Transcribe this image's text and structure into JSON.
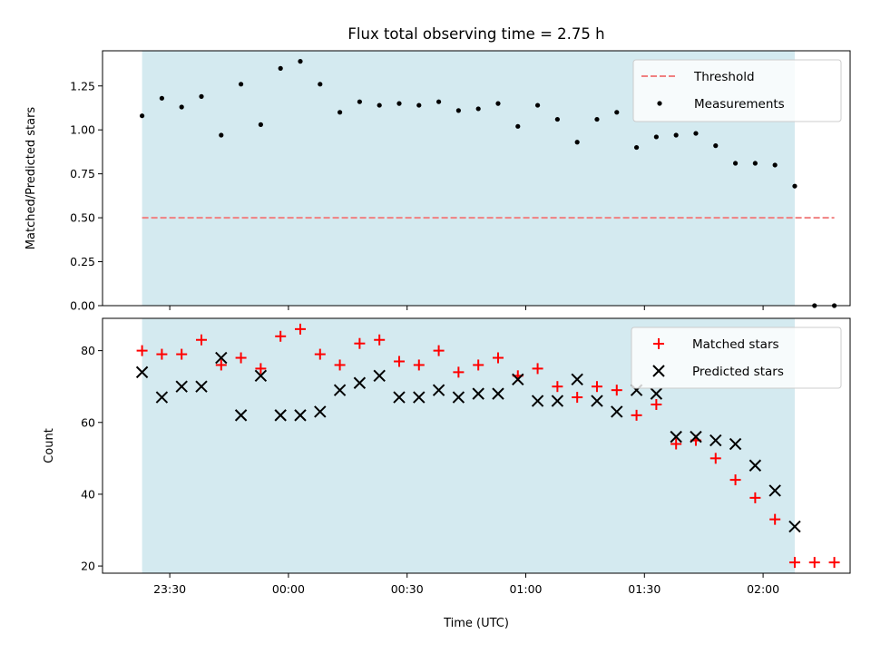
{
  "title": "Flux total observing time = 2.75 h",
  "colors": {
    "shade": "#d4eaf0",
    "threshold": "#f08080",
    "measurement": "#000000",
    "matched": "#ff0000",
    "predicted": "#000000"
  },
  "chart_data": [
    {
      "type": "scatter",
      "ylabel": "Matched/Predicted stars",
      "ylim": [
        0,
        1.45
      ],
      "yticks": [
        0.0,
        0.25,
        0.5,
        0.75,
        1.0,
        1.25
      ],
      "ytick_labels": [
        "0.00",
        "0.25",
        "0.50",
        "0.75",
        "1.00",
        "1.25"
      ],
      "xlim": [
        "23:13",
        "02:22"
      ],
      "grid": false,
      "legend_position": "top-right",
      "shaded_interval": [
        "23:23",
        "02:08"
      ],
      "threshold": {
        "name": "Threshold",
        "value": 0.5,
        "x_range": [
          "23:23",
          "02:18"
        ],
        "style": "dashed"
      },
      "series": [
        {
          "name": "Measurements",
          "marker": "dot",
          "x": [
            "23:23",
            "23:28",
            "23:33",
            "23:38",
            "23:43",
            "23:48",
            "23:53",
            "23:58",
            "00:03",
            "00:08",
            "00:13",
            "00:18",
            "00:23",
            "00:28",
            "00:33",
            "00:38",
            "00:43",
            "00:48",
            "00:53",
            "00:58",
            "01:03",
            "01:08",
            "01:13",
            "01:18",
            "01:23",
            "01:28",
            "01:33",
            "01:38",
            "01:43",
            "01:48",
            "01:53",
            "01:58",
            "02:03",
            "02:08",
            "02:13",
            "02:18"
          ],
          "y": [
            1.08,
            1.18,
            1.13,
            1.19,
            0.97,
            1.26,
            1.03,
            1.35,
            1.39,
            1.26,
            1.1,
            1.16,
            1.14,
            1.15,
            1.14,
            1.16,
            1.11,
            1.12,
            1.15,
            1.02,
            1.14,
            1.06,
            0.93,
            1.06,
            1.1,
            0.9,
            0.96,
            0.97,
            0.98,
            0.91,
            0.81,
            0.81,
            0.8,
            0.68,
            0.0,
            0.0
          ]
        }
      ]
    },
    {
      "type": "scatter",
      "ylabel": "Count",
      "xlabel": "Time (UTC)",
      "ylim": [
        18,
        89
      ],
      "yticks": [
        20,
        40,
        60,
        80
      ],
      "ytick_labels": [
        "20",
        "40",
        "60",
        "80"
      ],
      "xlim": [
        "23:13",
        "02:22"
      ],
      "xticks": [
        "23:30",
        "00:00",
        "00:30",
        "01:00",
        "01:30",
        "02:00"
      ],
      "grid": false,
      "legend_position": "top-right",
      "shaded_interval": [
        "23:23",
        "02:08"
      ],
      "series": [
        {
          "name": "Matched stars",
          "marker": "plus",
          "x": [
            "23:23",
            "23:28",
            "23:33",
            "23:38",
            "23:43",
            "23:48",
            "23:53",
            "23:58",
            "00:03",
            "00:08",
            "00:13",
            "00:18",
            "00:23",
            "00:28",
            "00:33",
            "00:38",
            "00:43",
            "00:48",
            "00:53",
            "00:58",
            "01:03",
            "01:08",
            "01:13",
            "01:18",
            "01:23",
            "01:28",
            "01:33",
            "01:38",
            "01:43",
            "01:48",
            "01:53",
            "01:58",
            "02:03",
            "02:08",
            "02:13",
            "02:18"
          ],
          "y": [
            80,
            79,
            79,
            83,
            76,
            78,
            75,
            84,
            86,
            79,
            76,
            82,
            83,
            77,
            76,
            80,
            74,
            76,
            78,
            73,
            75,
            70,
            67,
            70,
            69,
            62,
            65,
            54,
            55,
            50,
            44,
            39,
            33,
            21,
            21,
            21
          ]
        },
        {
          "name": "Predicted stars",
          "marker": "x",
          "x": [
            "23:23",
            "23:28",
            "23:33",
            "23:38",
            "23:43",
            "23:48",
            "23:53",
            "23:58",
            "00:03",
            "00:08",
            "00:13",
            "00:18",
            "00:23",
            "00:28",
            "00:33",
            "00:38",
            "00:43",
            "00:48",
            "00:53",
            "00:58",
            "01:03",
            "01:08",
            "01:13",
            "01:18",
            "01:23",
            "01:28",
            "01:33",
            "01:38",
            "01:43",
            "01:48",
            "01:53",
            "01:58",
            "02:03",
            "02:08"
          ],
          "y": [
            74,
            67,
            70,
            70,
            78,
            62,
            73,
            62,
            62,
            63,
            69,
            71,
            73,
            67,
            67,
            69,
            67,
            68,
            68,
            72,
            66,
            66,
            72,
            66,
            63,
            69,
            68,
            56,
            56,
            55,
            54,
            48,
            41,
            31
          ]
        }
      ]
    }
  ]
}
